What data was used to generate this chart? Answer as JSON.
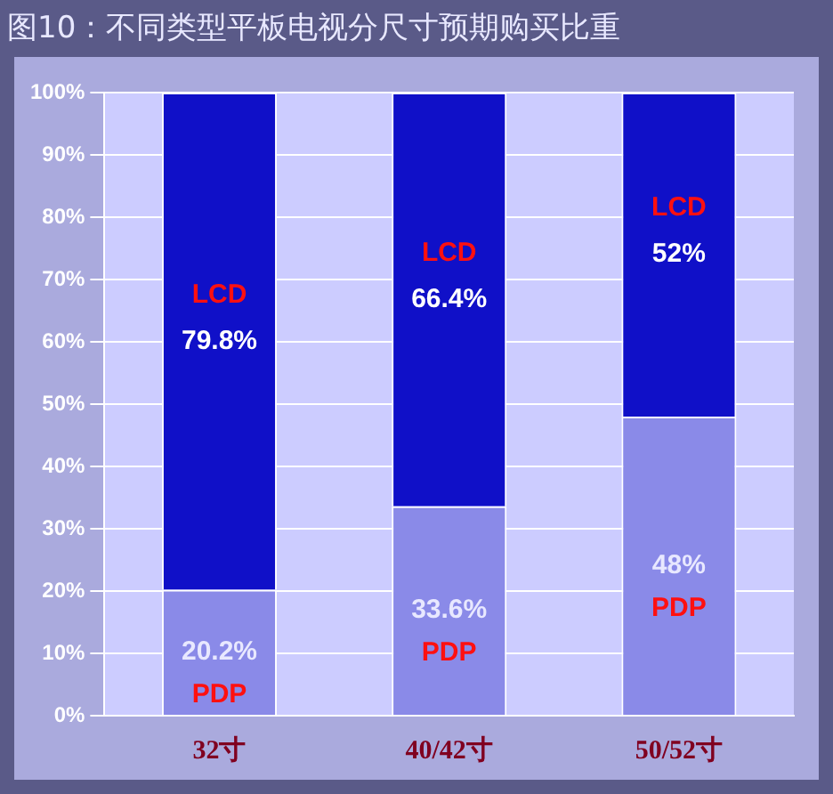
{
  "chart_data": {
    "type": "bar",
    "title": "图10：不同类型平板电视分尺寸预期购买比重",
    "categories": [
      "32寸",
      "40/42寸",
      "50/52寸"
    ],
    "stacked": true,
    "series": [
      {
        "name": "PDP",
        "color": "#8a8ae8",
        "values": [
          20.2,
          33.6,
          48
        ],
        "value_labels": [
          "20.2%",
          "33.6%",
          "48%"
        ]
      },
      {
        "name": "LCD",
        "color": "#1010c8",
        "values": [
          79.8,
          66.4,
          52
        ],
        "value_labels": [
          "79.8%",
          "66.4%",
          "52%"
        ]
      }
    ],
    "ylim": [
      0,
      100
    ],
    "yticks": [
      {
        "value": 0,
        "label": "0%"
      },
      {
        "value": 10,
        "label": "10%"
      },
      {
        "value": 20,
        "label": "20%"
      },
      {
        "value": 30,
        "label": "30%"
      },
      {
        "value": 40,
        "label": "40%"
      },
      {
        "value": 50,
        "label": "50%"
      },
      {
        "value": 60,
        "label": "60%"
      },
      {
        "value": 70,
        "label": "70%"
      },
      {
        "value": 80,
        "label": "80%"
      },
      {
        "value": 90,
        "label": "90%"
      },
      {
        "value": 100,
        "label": "100%"
      }
    ],
    "grid": "y",
    "legend": false
  }
}
